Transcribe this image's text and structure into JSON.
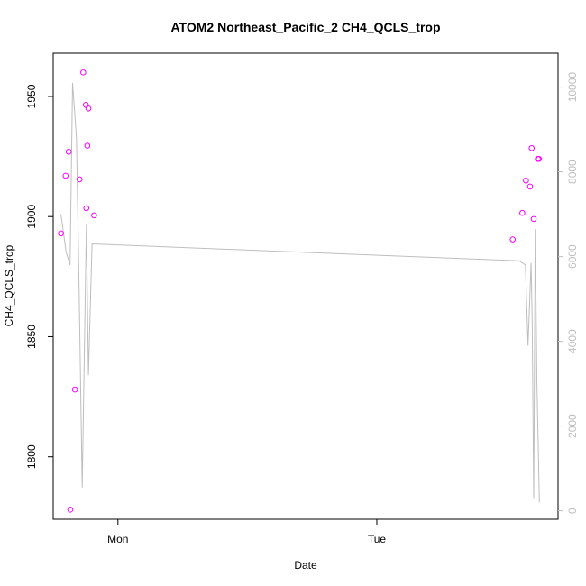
{
  "chart_data": {
    "type": "scatter",
    "title": "ATOM2 Northeast_Pacific_2 CH4_QCLS_trop",
    "xlabel": "Date",
    "ylabel": "CH4_QCLS_trop",
    "x_ticks": [
      "Mon",
      "Tue"
    ],
    "y_left_ticks": [
      "1800",
      "1850",
      "1900",
      "1950"
    ],
    "y_right_ticks": [
      "0",
      "2000",
      "4000",
      "6000",
      "8000",
      "10000"
    ],
    "ylim": [
      1774,
      1968
    ],
    "ylim_right": [
      -200,
      10800
    ],
    "xlim": [
      0,
      1.95
    ],
    "grid": false,
    "series": [
      {
        "kind": "points",
        "color": "#ff00ff",
        "points": [
          {
            "x": 0.03,
            "y": 1893
          },
          {
            "x": 0.048,
            "y": 1917
          },
          {
            "x": 0.06,
            "y": 1927
          },
          {
            "x": 0.066,
            "y": 1778
          },
          {
            "x": 0.084,
            "y": 1828
          },
          {
            "x": 0.102,
            "y": 1915.5
          },
          {
            "x": 0.116,
            "y": 1960
          },
          {
            "x": 0.126,
            "y": 1946.5
          },
          {
            "x": 0.128,
            "y": 1903.5
          },
          {
            "x": 0.132,
            "y": 1929.5
          },
          {
            "x": 0.136,
            "y": 1945
          },
          {
            "x": 0.158,
            "y": 1900.5
          },
          {
            "x": 1.775,
            "y": 1890.5
          },
          {
            "x": 1.812,
            "y": 1901.5
          },
          {
            "x": 1.826,
            "y": 1915
          },
          {
            "x": 1.842,
            "y": 1912.5
          },
          {
            "x": 1.848,
            "y": 1928.5
          },
          {
            "x": 1.856,
            "y": 1899
          },
          {
            "x": 1.872,
            "y": 1924
          },
          {
            "x": 1.876,
            "y": 1924
          }
        ]
      },
      {
        "kind": "line",
        "axis": "right",
        "color": "#bebebe",
        "points": [
          {
            "x": 0.03,
            "y": 7000
          },
          {
            "x": 0.05,
            "y": 6100
          },
          {
            "x": 0.065,
            "y": 5800
          },
          {
            "x": 0.075,
            "y": 10100
          },
          {
            "x": 0.09,
            "y": 8800
          },
          {
            "x": 0.1,
            "y": 5300
          },
          {
            "x": 0.112,
            "y": 550
          },
          {
            "x": 0.128,
            "y": 6750
          },
          {
            "x": 0.136,
            "y": 3200
          },
          {
            "x": 0.15,
            "y": 6300
          },
          {
            "x": 1.8,
            "y": 5900
          },
          {
            "x": 1.824,
            "y": 5800
          },
          {
            "x": 1.834,
            "y": 3900
          },
          {
            "x": 1.846,
            "y": 5850
          },
          {
            "x": 1.85,
            "y": 4500
          },
          {
            "x": 1.856,
            "y": 300
          },
          {
            "x": 1.862,
            "y": 6650
          },
          {
            "x": 1.868,
            "y": 3100
          },
          {
            "x": 1.878,
            "y": 200
          }
        ]
      }
    ],
    "x_tick_values": [
      0.25,
      1.25
    ],
    "y_left_tick_values": [
      1800,
      1850,
      1900,
      1950
    ],
    "y_right_tick_values": [
      0,
      2000,
      4000,
      6000,
      8000,
      10000
    ]
  }
}
